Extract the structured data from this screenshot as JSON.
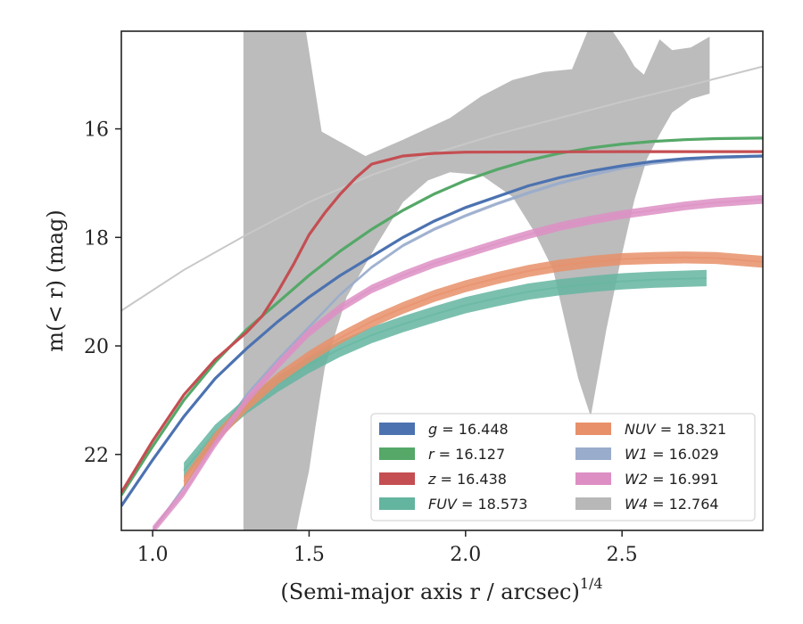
{
  "chart_data": {
    "type": "line",
    "xlabel": "(Semi-major axis r / arcsec)",
    "xlabel_superscript": "1/4",
    "ylabel": "m(< r) (mag)",
    "xlim": [
      0.9,
      2.95
    ],
    "ylim": [
      23.4,
      14.2
    ],
    "y_inverted": true,
    "grid": false,
    "legend_location": "lower right",
    "x_ticks": [
      {
        "value": 1.0,
        "label": "1.0"
      },
      {
        "value": 1.5,
        "label": "1.5"
      },
      {
        "value": 2.0,
        "label": "2.0"
      },
      {
        "value": 2.5,
        "label": "2.5"
      }
    ],
    "y_ticks": [
      {
        "value": 16,
        "label": "16"
      },
      {
        "value": 18,
        "label": "18"
      },
      {
        "value": 20,
        "label": "20"
      },
      {
        "value": 22,
        "label": "22"
      }
    ],
    "series": [
      {
        "key": "g",
        "name": "g = 16.448",
        "color": "#4c72b0",
        "data": [
          [
            0.9,
            22.95
          ],
          [
            1.0,
            22.1
          ],
          [
            1.1,
            21.3
          ],
          [
            1.2,
            20.6
          ],
          [
            1.3,
            20.05
          ],
          [
            1.4,
            19.55
          ],
          [
            1.5,
            19.1
          ],
          [
            1.6,
            18.7
          ],
          [
            1.7,
            18.35
          ],
          [
            1.8,
            18.0
          ],
          [
            1.9,
            17.7
          ],
          [
            2.0,
            17.45
          ],
          [
            2.1,
            17.25
          ],
          [
            2.2,
            17.05
          ],
          [
            2.3,
            16.9
          ],
          [
            2.4,
            16.78
          ],
          [
            2.5,
            16.68
          ],
          [
            2.6,
            16.6
          ],
          [
            2.7,
            16.55
          ],
          [
            2.8,
            16.52
          ],
          [
            2.95,
            16.5
          ]
        ]
      },
      {
        "key": "r",
        "name": "r = 16.127",
        "color": "#55a868",
        "data": [
          [
            0.9,
            22.75
          ],
          [
            1.0,
            21.85
          ],
          [
            1.1,
            21.0
          ],
          [
            1.2,
            20.3
          ],
          [
            1.3,
            19.7
          ],
          [
            1.4,
            19.2
          ],
          [
            1.5,
            18.7
          ],
          [
            1.6,
            18.25
          ],
          [
            1.7,
            17.85
          ],
          [
            1.8,
            17.5
          ],
          [
            1.9,
            17.2
          ],
          [
            2.0,
            16.95
          ],
          [
            2.1,
            16.75
          ],
          [
            2.2,
            16.58
          ],
          [
            2.3,
            16.45
          ],
          [
            2.4,
            16.35
          ],
          [
            2.5,
            16.28
          ],
          [
            2.6,
            16.23
          ],
          [
            2.7,
            16.2
          ],
          [
            2.8,
            16.18
          ],
          [
            2.95,
            16.17
          ]
        ]
      },
      {
        "key": "z",
        "name": "z = 16.438",
        "color": "#c44e52",
        "data": [
          [
            0.9,
            22.7
          ],
          [
            1.0,
            21.75
          ],
          [
            1.1,
            20.9
          ],
          [
            1.2,
            20.25
          ],
          [
            1.3,
            19.75
          ],
          [
            1.35,
            19.45
          ],
          [
            1.4,
            19.0
          ],
          [
            1.45,
            18.5
          ],
          [
            1.5,
            17.95
          ],
          [
            1.55,
            17.55
          ],
          [
            1.6,
            17.2
          ],
          [
            1.65,
            16.9
          ],
          [
            1.7,
            16.65
          ],
          [
            1.8,
            16.5
          ],
          [
            1.9,
            16.45
          ],
          [
            2.0,
            16.43
          ],
          [
            2.5,
            16.42
          ],
          [
            2.95,
            16.42
          ]
        ]
      },
      {
        "key": "FUV",
        "name": "FUV = 18.573",
        "color": "#64b5a0",
        "data": [
          [
            1.1,
            22.3
          ],
          [
            1.2,
            21.6
          ],
          [
            1.3,
            21.1
          ],
          [
            1.4,
            20.7
          ],
          [
            1.5,
            20.35
          ],
          [
            1.6,
            20.05
          ],
          [
            1.7,
            19.8
          ],
          [
            1.8,
            19.6
          ],
          [
            1.9,
            19.42
          ],
          [
            2.0,
            19.25
          ],
          [
            2.1,
            19.12
          ],
          [
            2.2,
            19.0
          ],
          [
            2.3,
            18.92
          ],
          [
            2.4,
            18.86
          ],
          [
            2.5,
            18.81
          ],
          [
            2.6,
            18.78
          ],
          [
            2.77,
            18.75
          ]
        ],
        "band_width": 0.3
      },
      {
        "key": "NUV",
        "name": "NUV = 18.321",
        "color": "#e8906a",
        "data": [
          [
            1.1,
            22.5
          ],
          [
            1.2,
            21.7
          ],
          [
            1.3,
            21.1
          ],
          [
            1.4,
            20.6
          ],
          [
            1.5,
            20.2
          ],
          [
            1.6,
            19.85
          ],
          [
            1.7,
            19.55
          ],
          [
            1.8,
            19.3
          ],
          [
            1.9,
            19.08
          ],
          [
            2.0,
            18.9
          ],
          [
            2.1,
            18.75
          ],
          [
            2.2,
            18.62
          ],
          [
            2.3,
            18.52
          ],
          [
            2.4,
            18.45
          ],
          [
            2.5,
            18.4
          ],
          [
            2.6,
            18.38
          ],
          [
            2.7,
            18.37
          ],
          [
            2.8,
            18.38
          ],
          [
            2.95,
            18.45
          ]
        ],
        "band_width": 0.22
      },
      {
        "key": "W1",
        "name": "W1 = 16.029",
        "color": "#9aaccc",
        "data": [
          [
            1.0,
            23.4
          ],
          [
            1.1,
            22.6
          ],
          [
            1.2,
            21.7
          ],
          [
            1.3,
            20.9
          ],
          [
            1.4,
            20.25
          ],
          [
            1.5,
            19.65
          ],
          [
            1.6,
            19.05
          ],
          [
            1.7,
            18.55
          ],
          [
            1.8,
            18.15
          ],
          [
            1.9,
            17.85
          ],
          [
            2.0,
            17.6
          ],
          [
            2.1,
            17.38
          ],
          [
            2.2,
            17.18
          ],
          [
            2.3,
            17.0
          ],
          [
            2.4,
            16.85
          ],
          [
            2.5,
            16.72
          ],
          [
            2.6,
            16.63
          ],
          [
            2.7,
            16.57
          ],
          [
            2.8,
            16.53
          ],
          [
            2.95,
            16.5
          ]
        ],
        "band_width": 0.06
      },
      {
        "key": "W2",
        "name": "W2 = 16.991",
        "color": "#dd8fc4",
        "data": [
          [
            1.0,
            23.4
          ],
          [
            1.1,
            22.7
          ],
          [
            1.2,
            21.8
          ],
          [
            1.3,
            21.0
          ],
          [
            1.4,
            20.35
          ],
          [
            1.5,
            19.75
          ],
          [
            1.6,
            19.3
          ],
          [
            1.7,
            18.95
          ],
          [
            1.8,
            18.7
          ],
          [
            1.9,
            18.48
          ],
          [
            2.0,
            18.3
          ],
          [
            2.1,
            18.12
          ],
          [
            2.2,
            17.95
          ],
          [
            2.3,
            17.8
          ],
          [
            2.4,
            17.68
          ],
          [
            2.5,
            17.58
          ],
          [
            2.6,
            17.5
          ],
          [
            2.7,
            17.42
          ],
          [
            2.8,
            17.36
          ],
          [
            2.95,
            17.3
          ]
        ],
        "band_width": 0.16
      },
      {
        "key": "W4",
        "name": "W4 = 12.764",
        "color": "#b8b8b8",
        "data": [
          [
            0.9,
            19.35
          ],
          [
            1.1,
            18.6
          ],
          [
            1.3,
            17.95
          ],
          [
            1.5,
            17.35
          ],
          [
            1.7,
            16.85
          ],
          [
            1.9,
            16.45
          ],
          [
            2.1,
            16.1
          ],
          [
            2.3,
            15.8
          ],
          [
            2.5,
            15.5
          ],
          [
            2.7,
            15.22
          ],
          [
            2.95,
            14.85
          ]
        ],
        "band_upper": [
          [
            1.29,
            14.2
          ],
          [
            1.49,
            14.2
          ],
          [
            1.54,
            16.05
          ],
          [
            1.68,
            16.5
          ],
          [
            1.8,
            16.2
          ],
          [
            1.95,
            15.8
          ],
          [
            2.05,
            15.4
          ],
          [
            2.15,
            15.1
          ],
          [
            2.25,
            14.95
          ],
          [
            2.34,
            14.9
          ],
          [
            2.39,
            14.2
          ],
          [
            2.47,
            14.2
          ],
          [
            2.51,
            14.55
          ],
          [
            2.54,
            14.85
          ],
          [
            2.57,
            15.0
          ],
          [
            2.62,
            14.35
          ],
          [
            2.66,
            14.55
          ],
          [
            2.72,
            14.5
          ],
          [
            2.78,
            14.3
          ]
        ],
        "band_lower": [
          [
            2.78,
            15.35
          ],
          [
            2.72,
            15.45
          ],
          [
            2.66,
            15.7
          ],
          [
            2.62,
            16.1
          ],
          [
            2.58,
            16.55
          ],
          [
            2.54,
            17.3
          ],
          [
            2.5,
            18.3
          ],
          [
            2.45,
            19.7
          ],
          [
            2.4,
            21.3
          ],
          [
            2.36,
            20.6
          ],
          [
            2.32,
            19.6
          ],
          [
            2.28,
            18.6
          ],
          [
            2.22,
            17.9
          ],
          [
            2.15,
            17.25
          ],
          [
            2.05,
            16.85
          ],
          [
            1.95,
            16.8
          ],
          [
            1.88,
            16.95
          ],
          [
            1.8,
            17.35
          ],
          [
            1.72,
            18.1
          ],
          [
            1.62,
            19.1
          ],
          [
            1.55,
            20.4
          ],
          [
            1.52,
            21.5
          ],
          [
            1.5,
            22.3
          ],
          [
            1.47,
            23.1
          ],
          [
            1.46,
            23.4
          ],
          [
            1.29,
            23.4
          ]
        ]
      }
    ],
    "legend": [
      {
        "key": "g",
        "prefix": "",
        "sym": "g",
        "value": " = 16.448",
        "color": "#4c72b0"
      },
      {
        "key": "r",
        "prefix": "",
        "sym": "r",
        "value": " = 16.127",
        "color": "#55a868"
      },
      {
        "key": "z",
        "prefix": "",
        "sym": "z",
        "value": " = 16.438",
        "color": "#c44e52"
      },
      {
        "key": "FUV",
        "prefix": "",
        "sym": "FUV",
        "value": " = 18.573",
        "color": "#64b5a0"
      },
      {
        "key": "NUV",
        "prefix": "",
        "sym": "NUV",
        "value": " = 18.321",
        "color": "#e8906a"
      },
      {
        "key": "W1",
        "prefix": "",
        "sym": "W1",
        "value": " = 16.029",
        "color": "#9aaccc"
      },
      {
        "key": "W2",
        "prefix": "",
        "sym": "W2",
        "value": " = 16.991",
        "color": "#dd8fc4"
      },
      {
        "key": "W4",
        "prefix": "",
        "sym": "W4",
        "value": " = 12.764",
        "color": "#b8b8b8"
      }
    ]
  }
}
